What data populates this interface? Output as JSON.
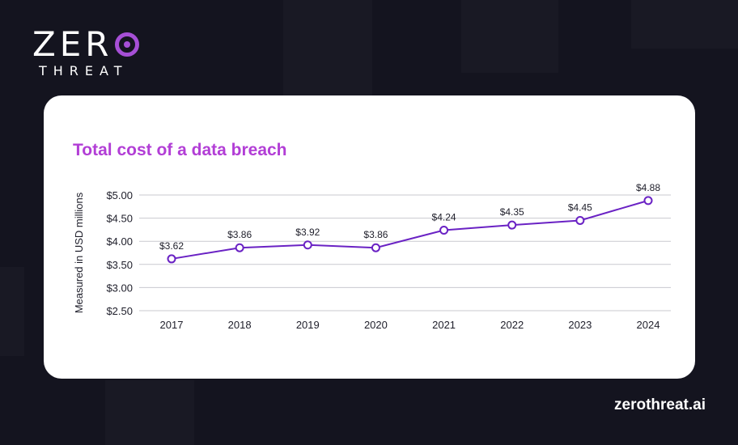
{
  "brand": {
    "logo_top": "ZER",
    "logo_bottom": "THREAT",
    "accent_color": "#a64fd6",
    "footer_url": "zerothreat.ai"
  },
  "chart_data": {
    "type": "line",
    "title": "Total cost of a data breach",
    "xlabel": "",
    "ylabel": "Measured in USD millions",
    "categories": [
      "2017",
      "2018",
      "2019",
      "2020",
      "2021",
      "2022",
      "2023",
      "2024"
    ],
    "series": [
      {
        "name": "Total cost",
        "values": [
          3.62,
          3.86,
          3.92,
          3.86,
          4.24,
          4.35,
          4.45,
          4.88
        ],
        "labels": [
          "$3.62",
          "$3.86",
          "$3.92",
          "$3.86",
          "$4.24",
          "$4.35",
          "$4.45",
          "$4.88"
        ]
      }
    ],
    "ylim": [
      2.5,
      5.0
    ],
    "yticks": [
      2.5,
      3.0,
      3.5,
      4.0,
      4.5,
      5.0
    ],
    "ytick_labels": [
      "$2.50",
      "$3.00",
      "$3.50",
      "$4.00",
      "$4.50",
      "$5.00"
    ],
    "grid": true,
    "line_color": "#6a22c4",
    "title_color": "#b23ed6"
  }
}
